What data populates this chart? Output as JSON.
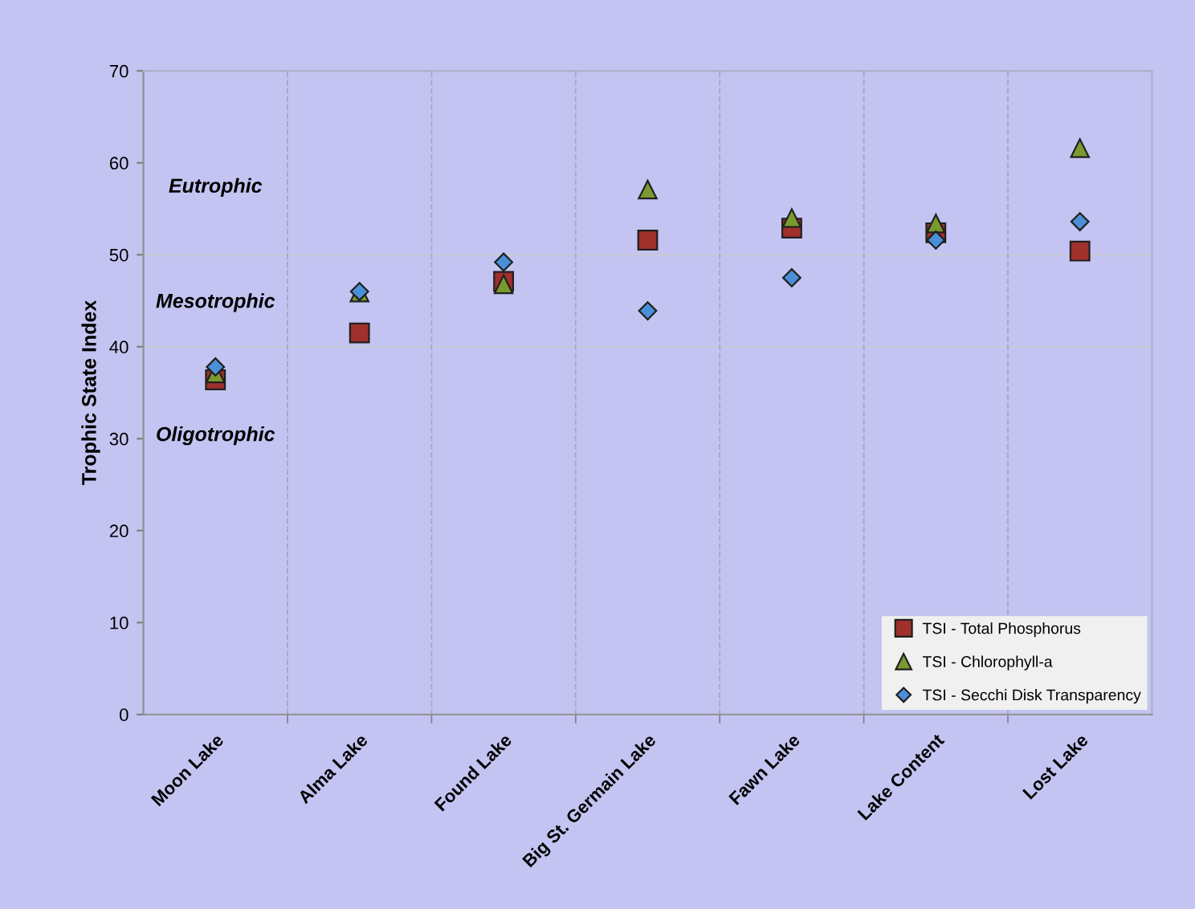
{
  "chart_data": {
    "type": "scatter",
    "ylabel": "Trophic State Index",
    "categories": [
      "Moon Lake",
      "Alma Lake",
      "Found Lake",
      "Big St. Germain Lake",
      "Fawn Lake",
      "Lake Content",
      "Lost Lake"
    ],
    "series": [
      {
        "name": "TSI - Total Phosphorus",
        "color": "#a0302c",
        "marker": "square",
        "values": [
          36.4,
          41.5,
          47.1,
          51.6,
          52.9,
          52.4,
          50.4
        ]
      },
      {
        "name": "TSI - Chlorophyll-a",
        "color": "#7a9a30",
        "marker": "triangle",
        "values": [
          37.1,
          45.9,
          46.8,
          57.1,
          54.0,
          53.4,
          61.6
        ]
      },
      {
        "name": "TSI - Secchi Disk Transparency",
        "color": "#4a90d8",
        "marker": "diamond",
        "values": [
          37.8,
          46.0,
          49.2,
          43.9,
          47.5,
          51.6,
          53.6
        ]
      }
    ],
    "ylim": [
      0,
      70
    ],
    "yticks": [
      0,
      10,
      20,
      30,
      40,
      50,
      60,
      70
    ],
    "ref_lines": [
      {
        "axis": "y",
        "value": 40,
        "color": "#c8c8d8"
      },
      {
        "axis": "y",
        "value": 50,
        "color": "#c8c8d8"
      }
    ],
    "annotations": [
      "Eutrophic",
      "Mesotrophic",
      "Oligotrophic"
    ],
    "grid": "x",
    "legend": "bottom right"
  }
}
